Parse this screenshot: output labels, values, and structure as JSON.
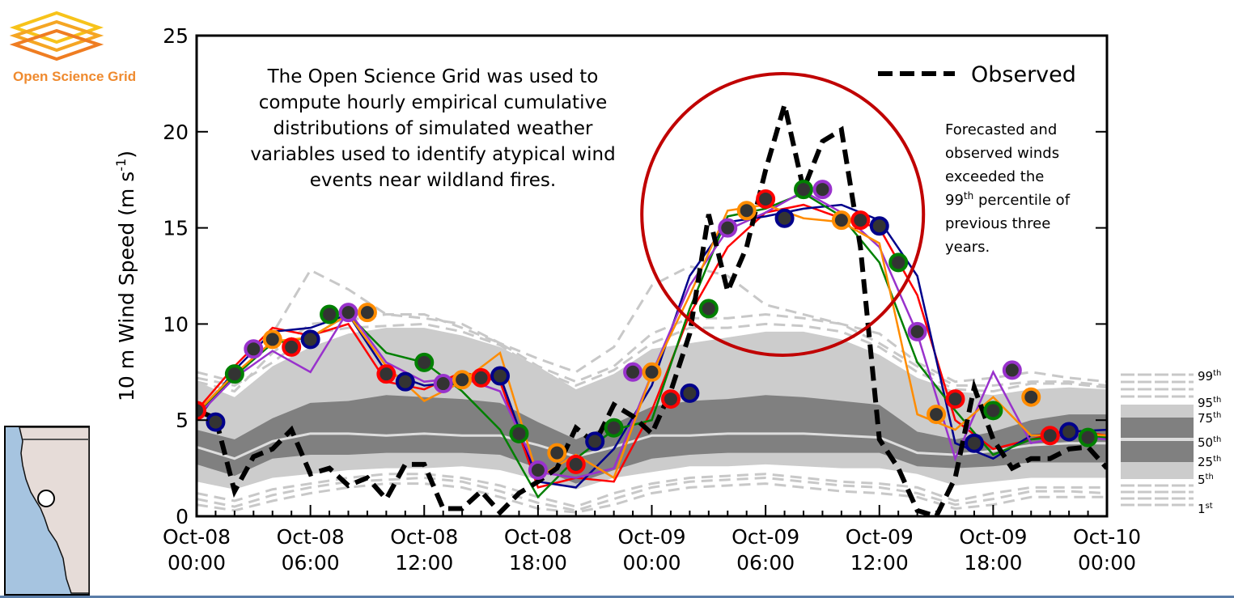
{
  "logo": {
    "text": "Open Science Grid",
    "colors": [
      "#f7c31a",
      "#f5a623",
      "#ef7d22"
    ]
  },
  "chart_data": {
    "type": "line",
    "ylabel": "10 m Wind Speed (m s",
    "ylabel_sup": "-1",
    "ylabel_end": ")",
    "ylim": [
      0,
      25
    ],
    "yticks": [
      "0",
      "5",
      "10",
      "15",
      "20",
      "25"
    ],
    "xlim_hours": [
      0,
      48
    ],
    "xticks": [
      {
        "date": "Oct-08",
        "time": "00:00"
      },
      {
        "date": "Oct-08",
        "time": "06:00"
      },
      {
        "date": "Oct-08",
        "time": "12:00"
      },
      {
        "date": "Oct-08",
        "time": "18:00"
      },
      {
        "date": "Oct-09",
        "time": "00:00"
      },
      {
        "date": "Oct-09",
        "time": "06:00"
      },
      {
        "date": "Oct-09",
        "time": "12:00"
      },
      {
        "date": "Oct-09",
        "time": "18:00"
      },
      {
        "date": "Oct-10",
        "time": "00:00"
      }
    ],
    "climatology": {
      "hours": [
        0,
        2,
        4,
        6,
        8,
        10,
        12,
        14,
        16,
        18,
        20,
        22,
        24,
        26,
        28,
        30,
        32,
        34,
        36,
        38,
        40,
        42,
        44,
        46,
        48
      ],
      "p5": [
        1.8,
        1.4,
        2.0,
        2.2,
        2.4,
        2.5,
        2.5,
        2.6,
        2.4,
        1.9,
        1.4,
        2.0,
        2.3,
        2.6,
        2.6,
        2.7,
        2.6,
        2.5,
        2.5,
        2.2,
        1.6,
        1.8,
        2.0,
        2.0,
        2.0
      ],
      "p25": [
        2.7,
        2.1,
        3.0,
        3.2,
        3.2,
        3.3,
        3.3,
        3.3,
        3.2,
        2.5,
        1.7,
        2.4,
        3.0,
        3.2,
        3.3,
        3.3,
        3.3,
        3.3,
        3.3,
        2.6,
        2.5,
        2.6,
        2.8,
        2.8,
        2.8
      ],
      "p50": [
        3.6,
        3.0,
        3.9,
        4.3,
        4.3,
        4.2,
        4.3,
        4.2,
        4.2,
        3.7,
        3.1,
        3.6,
        4.2,
        4.2,
        4.3,
        4.3,
        4.3,
        4.2,
        4.1,
        3.3,
        3.2,
        3.4,
        3.7,
        3.8,
        3.8
      ],
      "p75": [
        4.5,
        4.0,
        5.1,
        5.9,
        6.0,
        6.3,
        6.2,
        6.1,
        5.9,
        4.9,
        4.0,
        4.8,
        5.7,
        6.0,
        6.1,
        6.3,
        6.2,
        6.0,
        5.8,
        4.4,
        4.0,
        4.4,
        5.0,
        5.3,
        5.3
      ],
      "p95": [
        7.0,
        6.2,
        7.8,
        8.8,
        9.5,
        9.8,
        9.8,
        9.4,
        8.8,
        7.8,
        6.6,
        7.4,
        8.7,
        9.0,
        9.3,
        9.6,
        9.6,
        9.2,
        8.4,
        7.2,
        6.5,
        6.3,
        6.6,
        6.7,
        6.6
      ],
      "upper_dashed": [
        [
          7.5,
          7.0,
          9.5,
          12.8,
          11.8,
          10.5,
          10.3,
          10.0,
          9.0,
          8.2,
          7.5,
          8.8,
          12.0,
          13.0,
          12.5,
          11.0,
          10.5,
          10.0,
          9.5,
          8.0,
          7.0,
          7.2,
          7.5,
          7.2,
          7.0
        ],
        [
          7.0,
          6.5,
          8.5,
          10.0,
          10.2,
          10.5,
          10.5,
          9.8,
          9.0,
          7.8,
          7.0,
          7.8,
          9.5,
          10.3,
          10.3,
          10.5,
          10.3,
          10.0,
          9.0,
          7.8,
          6.8,
          6.8,
          7.0,
          7.0,
          6.8
        ],
        [
          7.2,
          6.8,
          8.0,
          9.5,
          9.8,
          9.9,
          10.0,
          9.6,
          8.9,
          7.6,
          6.8,
          7.6,
          9.0,
          9.8,
          9.8,
          10.0,
          9.9,
          9.6,
          8.8,
          7.5,
          6.6,
          6.5,
          6.9,
          6.9,
          6.7
        ]
      ],
      "lower_dashed": [
        [
          1.2,
          0.8,
          1.4,
          1.7,
          2.0,
          2.2,
          2.2,
          2.0,
          1.6,
          1.0,
          0.5,
          1.2,
          1.7,
          2.0,
          2.1,
          2.2,
          2.0,
          1.8,
          1.7,
          1.5,
          0.8,
          1.2,
          1.5,
          1.5,
          1.5
        ],
        [
          0.6,
          0.3,
          0.8,
          1.2,
          1.5,
          1.7,
          1.7,
          1.5,
          1.0,
          0.4,
          0.2,
          0.6,
          1.2,
          1.5,
          1.6,
          1.7,
          1.5,
          1.3,
          1.2,
          1.0,
          0.4,
          0.6,
          1.0,
          1.0,
          1.0
        ],
        [
          0.9,
          0.5,
          1.1,
          1.5,
          1.8,
          1.9,
          2.0,
          1.8,
          1.3,
          0.7,
          0.3,
          0.9,
          1.5,
          1.8,
          1.9,
          2.0,
          1.8,
          1.6,
          1.5,
          1.2,
          0.6,
          0.9,
          1.3,
          1.3,
          1.2
        ]
      ],
      "band_colors": {
        "outer": "#cccccc",
        "inner": "#808080",
        "median": "#dddddd",
        "dashed": "#c8c8c8"
      }
    },
    "forecasts": {
      "hours": [
        0,
        2,
        4,
        6,
        8,
        10,
        12,
        14,
        16,
        18,
        20,
        22,
        24,
        26,
        28,
        30,
        32,
        34,
        36,
        38,
        40,
        42,
        44,
        46,
        48
      ],
      "series": [
        {
          "color": "#ff0000",
          "values": [
            5.5,
            7.8,
            9.8,
            9.4,
            10.0,
            7.0,
            6.6,
            7.5,
            7.0,
            1.5,
            2.0,
            1.8,
            5.5,
            10.5,
            14.0,
            15.8,
            16.2,
            15.5,
            15.0,
            11.5,
            5.0,
            3.5,
            4.0,
            4.5,
            4.2
          ]
        },
        {
          "color": "#00008b",
          "values": [
            5.0,
            7.6,
            9.6,
            9.8,
            10.5,
            7.5,
            6.8,
            7.0,
            7.3,
            1.8,
            1.5,
            3.5,
            6.8,
            12.5,
            15.3,
            15.6,
            16.0,
            16.2,
            15.4,
            12.5,
            3.8,
            3.0,
            4.2,
            4.4,
            4.5
          ]
        },
        {
          "color": "#008000",
          "values": [
            5.3,
            7.3,
            9.0,
            9.3,
            10.5,
            8.5,
            8.0,
            6.5,
            4.5,
            1.0,
            3.0,
            4.5,
            5.0,
            10.8,
            15.6,
            16.0,
            16.8,
            15.6,
            13.2,
            8.0,
            5.5,
            3.2,
            4.0,
            4.2,
            4.1
          ]
        },
        {
          "color": "#9932cc",
          "values": [
            5.2,
            7.2,
            8.6,
            7.5,
            10.7,
            8.0,
            7.0,
            7.2,
            6.5,
            2.3,
            2.0,
            2.5,
            7.4,
            12.0,
            14.9,
            15.8,
            16.9,
            15.8,
            14.0,
            9.5,
            3.0,
            7.5,
            3.8,
            4.2,
            4.0
          ]
        },
        {
          "color": "#ff8c00",
          "values": [
            5.4,
            7.4,
            9.1,
            9.3,
            10.5,
            7.8,
            6.0,
            7.0,
            8.5,
            2.0,
            3.2,
            2.0,
            7.4,
            11.5,
            15.9,
            16.2,
            15.5,
            15.3,
            14.2,
            5.3,
            4.5,
            6.2,
            4.2,
            4.3,
            4.2
          ]
        }
      ],
      "markers": {
        "color_cycle": [
          "#ff0000",
          "#00008b",
          "#008000",
          "#9932cc",
          "#ff8c00"
        ],
        "fill": "#333333",
        "values": [
          5.5,
          4.9,
          7.4,
          8.7,
          9.2,
          8.8,
          9.2,
          10.5,
          10.6,
          10.6,
          7.4,
          7.0,
          8.0,
          6.9,
          7.1,
          7.2,
          7.3,
          4.3,
          2.4,
          3.3,
          2.7,
          3.9,
          4.6,
          7.5,
          7.5,
          6.1,
          6.4,
          10.8,
          15.0,
          15.9,
          16.5,
          15.5,
          17.0,
          17.0,
          15.4,
          15.4,
          15.1,
          13.2,
          9.6,
          5.3,
          6.1,
          3.8,
          5.5,
          7.6,
          6.2,
          4.2,
          4.4,
          4.1
        ]
      }
    },
    "observed": {
      "name": "Observed",
      "color": "#000000",
      "values": [
        5.5,
        5.1,
        1.3,
        3.1,
        3.5,
        4.5,
        2.2,
        2.5,
        1.6,
        2.0,
        0.9,
        2.7,
        2.7,
        0.4,
        0.4,
        1.3,
        0.2,
        1.2,
        1.8,
        2.5,
        4.6,
        3.8,
        5.8,
        5.2,
        4.3,
        6.5,
        9.5,
        15.7,
        11.7,
        14.0,
        18.0,
        21.4,
        17.0,
        19.5,
        20.1,
        14.0,
        4.0,
        2.5,
        0.3,
        0.0,
        2.0,
        6.7,
        4.0,
        2.5,
        3.0,
        3.0,
        3.5,
        3.6,
        2.5
      ]
    },
    "legend": {
      "position": "top-right",
      "label": "Observed"
    },
    "percentile_legend": [
      "99",
      "95",
      "75",
      "50",
      "25",
      "5",
      "1"
    ],
    "percentile_legend_suffix": [
      "th",
      "th",
      "th",
      "th",
      "th",
      "th",
      "st"
    ],
    "highlight_circle_color": "#c00000",
    "annotation_left": [
      "The Open Science Grid was used to",
      "compute hourly empirical cumulative",
      "distributions of simulated weather",
      "variables used to identify atypical wind",
      "events near wildland fires."
    ],
    "annotation_right": {
      "line1": "Forecasted and",
      "line2": "observed winds",
      "line3": "exceeded the",
      "line4_pre": "99",
      "line4_sup": "th",
      "line4_post": " percentile of",
      "line5": "previous three",
      "line6": "years."
    }
  },
  "map_inset": {
    "ocean_color": "#a6c4e0",
    "land_color": "#e6dcd8"
  }
}
